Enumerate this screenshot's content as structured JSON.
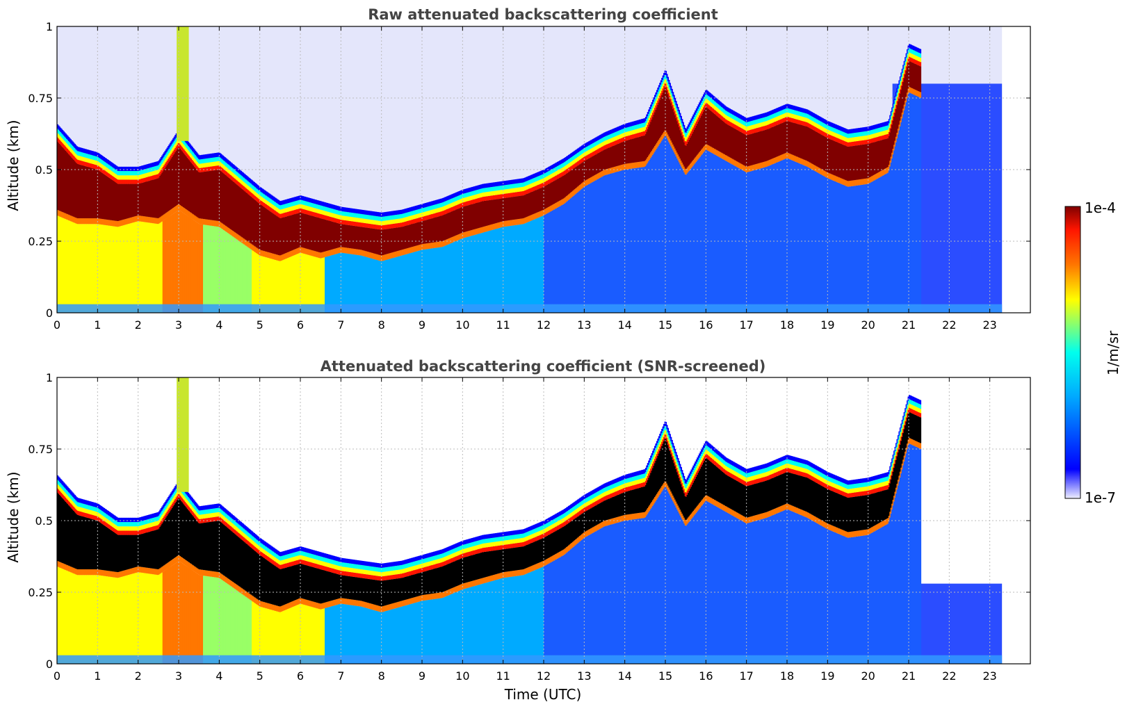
{
  "chart_data": [
    {
      "type": "heatmap",
      "title": "Raw attenuated backscattering coefficient",
      "xlabel": "",
      "ylabel": "Altitude (km)",
      "xlim": [
        0,
        24
      ],
      "ylim": [
        0,
        1
      ],
      "xticks": [
        "0",
        "1",
        "2",
        "3",
        "4",
        "5",
        "6",
        "7",
        "8",
        "9",
        "10",
        "11",
        "12",
        "13",
        "14",
        "15",
        "16",
        "17",
        "18",
        "19",
        "20",
        "21",
        "22",
        "23"
      ],
      "yticks": [
        "0",
        "0.25",
        "0.5",
        "0.75",
        "1"
      ],
      "grid": true,
      "data_end_hour": 23.3,
      "layer_height_km": {
        "hour": [
          0,
          0.5,
          1,
          1.5,
          2,
          2.5,
          3,
          3.5,
          4,
          4.5,
          5,
          5.5,
          6,
          6.5,
          7,
          7.5,
          8,
          8.5,
          9,
          9.5,
          10,
          10.5,
          11,
          11.5,
          12,
          12.5,
          13,
          13.5,
          14,
          14.5,
          15,
          15.5,
          16,
          16.5,
          17,
          17.5,
          18,
          18.5,
          19,
          19.5,
          20,
          20.5,
          21,
          21.3
        ],
        "top_km": [
          0.6,
          0.52,
          0.5,
          0.45,
          0.45,
          0.47,
          0.58,
          0.49,
          0.5,
          0.44,
          0.38,
          0.33,
          0.35,
          0.33,
          0.31,
          0.3,
          0.29,
          0.3,
          0.32,
          0.34,
          0.37,
          0.39,
          0.4,
          0.41,
          0.44,
          0.48,
          0.53,
          0.57,
          0.6,
          0.62,
          0.79,
          0.58,
          0.72,
          0.66,
          0.62,
          0.64,
          0.67,
          0.65,
          0.61,
          0.58,
          0.59,
          0.61,
          0.88,
          0.86
        ],
        "base_km": [
          0.34,
          0.31,
          0.31,
          0.3,
          0.32,
          0.31,
          0.36,
          0.31,
          0.3,
          0.25,
          0.2,
          0.18,
          0.21,
          0.19,
          0.21,
          0.2,
          0.18,
          0.2,
          0.22,
          0.23,
          0.26,
          0.28,
          0.3,
          0.31,
          0.34,
          0.38,
          0.44,
          0.48,
          0.5,
          0.51,
          0.62,
          0.48,
          0.57,
          0.53,
          0.49,
          0.51,
          0.54,
          0.51,
          0.47,
          0.44,
          0.45,
          0.49,
          0.77,
          0.75
        ]
      }
    },
    {
      "type": "heatmap",
      "title": "Attenuated backscattering coefficient (SNR-screened)",
      "xlabel": "Time (UTC)",
      "ylabel": "Altitude (km)",
      "xlim": [
        0,
        24
      ],
      "ylim": [
        0,
        1
      ],
      "xticks": [
        "0",
        "1",
        "2",
        "3",
        "4",
        "5",
        "6",
        "7",
        "8",
        "9",
        "10",
        "11",
        "12",
        "13",
        "14",
        "15",
        "16",
        "17",
        "18",
        "19",
        "20",
        "21",
        "22",
        "23"
      ],
      "yticks": [
        "0",
        "0.25",
        "0.5",
        "0.75",
        "1"
      ],
      "grid": true,
      "data_end_hour": 23.3
    }
  ],
  "colorbar": {
    "label": "1/m/sr",
    "max_label": "1e-4",
    "min_label": "1e-7",
    "scale": "log",
    "colors": [
      "#eeeeff",
      "#0000ff",
      "#00aaff",
      "#00ffee",
      "#ffff00",
      "#ff7700",
      "#ff1500",
      "#800000"
    ]
  }
}
